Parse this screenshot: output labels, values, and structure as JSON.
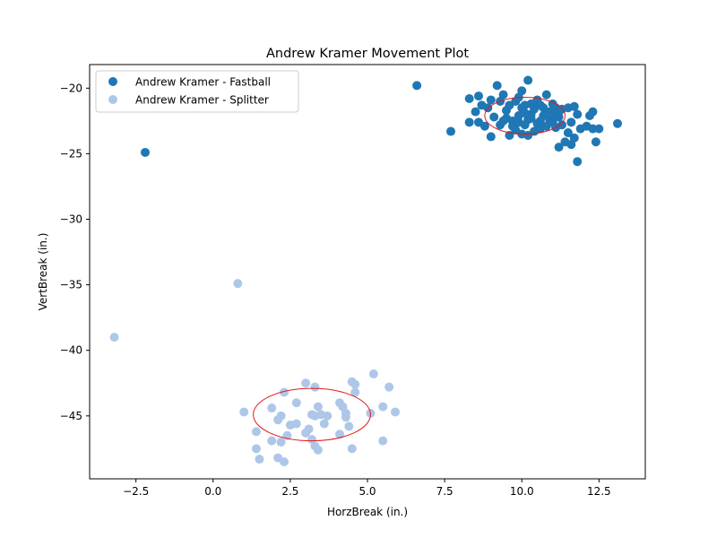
{
  "chart_data": {
    "type": "scatter",
    "title": "Andrew Kramer Movement Plot",
    "xlabel": "HorzBreak (in.)",
    "ylabel": "VertBreak (in.)",
    "xlim": [
      -4.0,
      14.0
    ],
    "ylim": [
      -49.8,
      -18.2
    ],
    "xticks": [
      -2.5,
      0.0,
      2.5,
      5.0,
      7.5,
      10.0,
      12.5
    ],
    "xtick_labels": [
      "−2.5",
      "0.0",
      "2.5",
      "5.0",
      "7.5",
      "10.0",
      "12.5"
    ],
    "yticks": [
      -45,
      -40,
      -35,
      -30,
      -25,
      -20
    ],
    "ytick_labels": [
      "−45",
      "−40",
      "−35",
      "−30",
      "−25",
      "−20"
    ],
    "legend_position": "upper-left",
    "grid": false,
    "series": [
      {
        "name": "Andrew Kramer - Fastball",
        "color": "#1f77b4",
        "points": [
          [
            -2.2,
            -24.9
          ],
          [
            6.6,
            -19.8
          ],
          [
            7.7,
            -23.3
          ],
          [
            8.3,
            -20.8
          ],
          [
            8.3,
            -22.6
          ],
          [
            8.5,
            -21.8
          ],
          [
            8.6,
            -22.6
          ],
          [
            8.6,
            -20.6
          ],
          [
            8.7,
            -21.3
          ],
          [
            8.8,
            -22.9
          ],
          [
            8.9,
            -21.5
          ],
          [
            9.0,
            -23.7
          ],
          [
            9.0,
            -20.9
          ],
          [
            9.1,
            -22.2
          ],
          [
            9.2,
            -19.8
          ],
          [
            9.3,
            -22.8
          ],
          [
            9.3,
            -21.0
          ],
          [
            9.4,
            -20.5
          ],
          [
            9.5,
            -21.7
          ],
          [
            9.5,
            -22.3
          ],
          [
            9.6,
            -23.6
          ],
          [
            9.6,
            -21.3
          ],
          [
            9.7,
            -22.5
          ],
          [
            9.8,
            -21.0
          ],
          [
            9.8,
            -23.2
          ],
          [
            9.9,
            -20.7
          ],
          [
            9.9,
            -22.1
          ],
          [
            10.0,
            -23.5
          ],
          [
            10.0,
            -21.5
          ],
          [
            10.0,
            -20.2
          ],
          [
            10.1,
            -22.8
          ],
          [
            10.1,
            -21.9
          ],
          [
            10.2,
            -19.4
          ],
          [
            10.2,
            -23.6
          ],
          [
            10.2,
            -22.4
          ],
          [
            10.3,
            -21.2
          ],
          [
            10.3,
            -22.0
          ],
          [
            10.4,
            -23.3
          ],
          [
            10.4,
            -21.6
          ],
          [
            10.5,
            -20.9
          ],
          [
            10.5,
            -22.7
          ],
          [
            10.6,
            -21.3
          ],
          [
            10.6,
            -23.1
          ],
          [
            10.7,
            -22.1
          ],
          [
            10.7,
            -21.5
          ],
          [
            10.8,
            -22.9
          ],
          [
            10.8,
            -20.5
          ],
          [
            10.9,
            -21.8
          ],
          [
            10.9,
            -22.4
          ],
          [
            11.0,
            -21.2
          ],
          [
            11.0,
            -22.0
          ],
          [
            11.1,
            -23.0
          ],
          [
            11.1,
            -21.5
          ],
          [
            11.2,
            -24.5
          ],
          [
            11.2,
            -22.2
          ],
          [
            11.3,
            -21.6
          ],
          [
            11.3,
            -22.8
          ],
          [
            11.4,
            -24.1
          ],
          [
            11.5,
            -23.4
          ],
          [
            11.5,
            -21.5
          ],
          [
            11.6,
            -24.3
          ],
          [
            11.6,
            -22.6
          ],
          [
            11.7,
            -21.4
          ],
          [
            11.7,
            -23.8
          ],
          [
            11.8,
            -25.6
          ],
          [
            11.8,
            -22.0
          ],
          [
            11.9,
            -23.1
          ],
          [
            12.1,
            -22.9
          ],
          [
            12.2,
            -22.1
          ],
          [
            12.3,
            -21.8
          ],
          [
            12.3,
            -23.1
          ],
          [
            12.4,
            -24.1
          ],
          [
            12.5,
            -23.1
          ],
          [
            13.1,
            -22.7
          ],
          [
            9.4,
            -22.5
          ],
          [
            9.7,
            -22.9
          ],
          [
            10.3,
            -22.3
          ],
          [
            10.5,
            -21.1
          ],
          [
            10.8,
            -21.9
          ],
          [
            11.0,
            -22.6
          ],
          [
            10.1,
            -21.3
          ],
          [
            9.9,
            -22.6
          ],
          [
            10.6,
            -22.5
          ],
          [
            11.2,
            -21.8
          ]
        ],
        "ellipse": {
          "center": [
            10.1,
            -22.1
          ],
          "semi_x": 1.3,
          "semi_y": 1.4
        }
      },
      {
        "name": "Andrew Kramer - Splitter",
        "color": "#aec7e8",
        "points": [
          [
            -3.2,
            -39.0
          ],
          [
            0.8,
            -34.9
          ],
          [
            1.0,
            -44.7
          ],
          [
            1.4,
            -46.2
          ],
          [
            1.4,
            -47.5
          ],
          [
            1.5,
            -48.3
          ],
          [
            1.9,
            -44.4
          ],
          [
            1.9,
            -46.9
          ],
          [
            2.1,
            -48.2
          ],
          [
            2.1,
            -45.3
          ],
          [
            2.2,
            -45.0
          ],
          [
            2.2,
            -47.0
          ],
          [
            2.3,
            -43.2
          ],
          [
            2.3,
            -48.5
          ],
          [
            2.4,
            -46.5
          ],
          [
            2.5,
            -45.7
          ],
          [
            2.7,
            -44.0
          ],
          [
            2.7,
            -45.6
          ],
          [
            3.0,
            -46.3
          ],
          [
            3.0,
            -42.5
          ],
          [
            3.1,
            -46.0
          ],
          [
            3.2,
            -44.9
          ],
          [
            3.2,
            -46.8
          ],
          [
            3.3,
            -45.0
          ],
          [
            3.3,
            -47.3
          ],
          [
            3.3,
            -42.8
          ],
          [
            3.4,
            -47.6
          ],
          [
            3.4,
            -44.3
          ],
          [
            3.5,
            -44.9
          ],
          [
            3.6,
            -45.6
          ],
          [
            3.7,
            -45.0
          ],
          [
            4.1,
            -44.0
          ],
          [
            4.1,
            -46.4
          ],
          [
            4.2,
            -44.3
          ],
          [
            4.3,
            -45.1
          ],
          [
            4.3,
            -44.8
          ],
          [
            4.4,
            -45.8
          ],
          [
            4.5,
            -47.5
          ],
          [
            4.5,
            -42.4
          ],
          [
            4.6,
            -43.2
          ],
          [
            4.6,
            -42.6
          ],
          [
            5.1,
            -44.8
          ],
          [
            5.2,
            -41.8
          ],
          [
            5.5,
            -46.9
          ],
          [
            5.5,
            -44.3
          ],
          [
            5.7,
            -42.8
          ],
          [
            5.9,
            -44.7
          ]
        ],
        "ellipse": {
          "center": [
            3.2,
            -44.9
          ],
          "semi_x": 1.9,
          "semi_y": 2.0
        }
      }
    ],
    "ellipse_color": "#e31a1c"
  }
}
